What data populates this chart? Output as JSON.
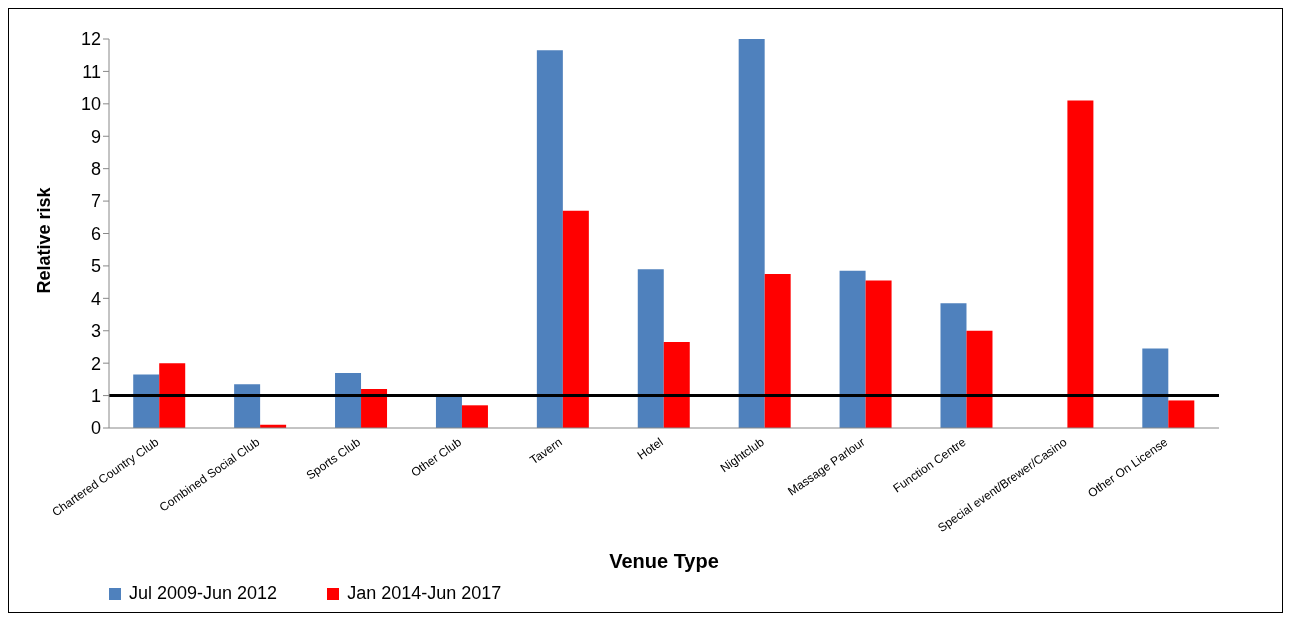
{
  "chart_data": {
    "type": "bar",
    "xlabel": "Venue Type",
    "ylabel": "Relative risk",
    "categories": [
      "Chartered Country Club",
      "Combined Social Club",
      "Sports Club",
      "Other Club",
      "Tavern",
      "Hotel",
      "Nightclub",
      "Massage Parlour",
      "Function Centre",
      "Special event/Brewer/Casino",
      "Other On License"
    ],
    "series": [
      {
        "name": "Jul 2009-Jun 2012",
        "color": "#4f81bd",
        "values": [
          1.65,
          1.35,
          1.7,
          1.0,
          11.65,
          4.9,
          12.0,
          4.85,
          3.85,
          null,
          2.45
        ]
      },
      {
        "name": "Jan 2014-Jun 2017",
        "color": "#ff0000",
        "values": [
          2.0,
          0.1,
          1.2,
          0.7,
          6.7,
          2.65,
          4.75,
          4.55,
          3.0,
          10.1,
          0.85
        ]
      }
    ],
    "ylim": [
      0,
      12
    ],
    "yticks": [
      0,
      1,
      2,
      3,
      4,
      5,
      6,
      7,
      8,
      9,
      10,
      11,
      12
    ],
    "grid": false,
    "legend": "bottom left",
    "ref_lines": [
      {
        "axis": "y",
        "value": 1,
        "color": "#000000"
      }
    ]
  }
}
